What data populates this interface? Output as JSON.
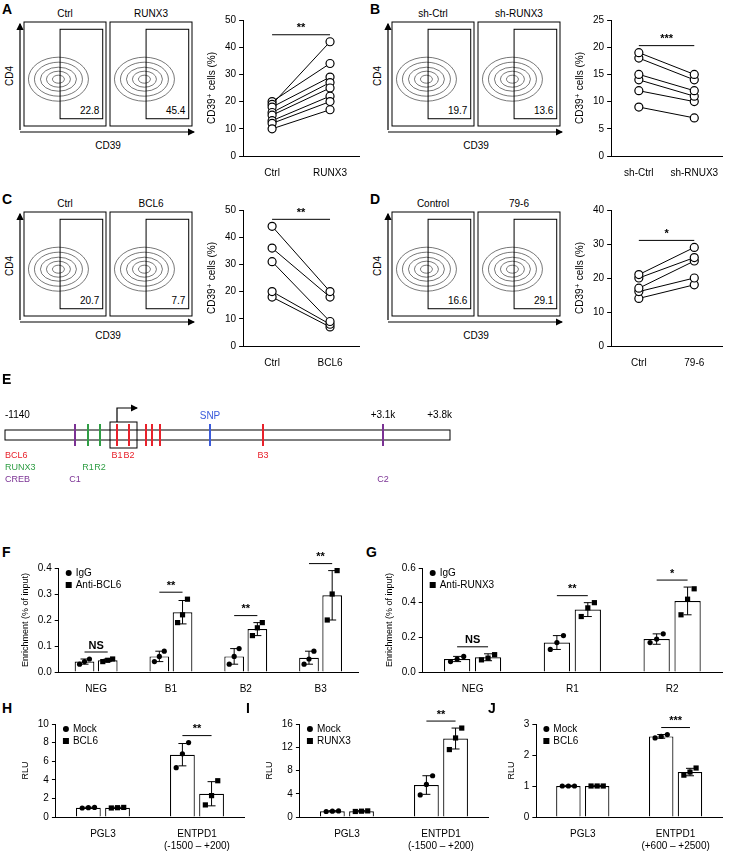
{
  "chart_data": [
    {
      "panel": "A",
      "type": "line",
      "categories": [
        "Ctrl",
        "RUNX3"
      ],
      "y_label": "CD39⁺ cells (%)",
      "ylim": [
        0,
        50
      ],
      "yticks": [
        0,
        10,
        20,
        30,
        40,
        50
      ],
      "grid": false,
      "color": "#000000",
      "marker": "circle",
      "significance": "**",
      "series": [
        {
          "values": [
            10,
            17
          ]
        },
        {
          "values": [
            12,
            20
          ]
        },
        {
          "values": [
            13,
            22
          ]
        },
        {
          "values": [
            15,
            25
          ]
        },
        {
          "values": [
            16,
            27
          ]
        },
        {
          "values": [
            18,
            29
          ]
        },
        {
          "values": [
            19,
            42
          ]
        },
        {
          "values": [
            20,
            34
          ]
        }
      ]
    },
    {
      "panel": "B",
      "type": "line",
      "categories": [
        "sh-Ctrl",
        "sh-RNUX3"
      ],
      "y_label": "CD39⁺ cells (%)",
      "ylim": [
        0,
        25
      ],
      "yticks": [
        0,
        5,
        10,
        15,
        20,
        25
      ],
      "grid": false,
      "color": "#000000",
      "marker": "circle",
      "significance": "***",
      "series": [
        {
          "values": [
            19,
            15
          ]
        },
        {
          "values": [
            18,
            14
          ]
        },
        {
          "values": [
            15,
            12
          ]
        },
        {
          "values": [
            14,
            11
          ]
        },
        {
          "values": [
            12,
            10
          ]
        },
        {
          "values": [
            9,
            7
          ]
        }
      ]
    },
    {
      "panel": "C",
      "type": "line",
      "categories": [
        "Ctrl",
        "BCL6"
      ],
      "y_label": "CD39⁺ cells (%)",
      "ylim": [
        0,
        50
      ],
      "yticks": [
        0,
        10,
        20,
        30,
        40,
        50
      ],
      "grid": false,
      "color": "#000000",
      "marker": "circle",
      "significance": "**",
      "series": [
        {
          "values": [
            44,
            20
          ]
        },
        {
          "values": [
            36,
            18
          ]
        },
        {
          "values": [
            31,
            9
          ]
        },
        {
          "values": [
            20,
            8
          ]
        },
        {
          "values": [
            18,
            7
          ]
        }
      ]
    },
    {
      "panel": "D",
      "type": "line",
      "categories": [
        "Ctrl",
        "79-6"
      ],
      "y_label": "CD39⁺ cells (%)",
      "ylim": [
        0,
        40
      ],
      "yticks": [
        0,
        10,
        20,
        30,
        40
      ],
      "grid": false,
      "color": "#000000",
      "marker": "circle",
      "significance": "*",
      "series": [
        {
          "values": [
            21,
            29
          ]
        },
        {
          "values": [
            20,
            26
          ]
        },
        {
          "values": [
            17,
            25
          ]
        },
        {
          "values": [
            16,
            20
          ]
        },
        {
          "values": [
            14,
            18
          ]
        }
      ]
    },
    {
      "panel": "F",
      "type": "bar",
      "categories": [
        "NEG",
        "B1",
        "B2",
        "B3"
      ],
      "y_label": "Enrichment (% of input)",
      "ylim": [
        0,
        0.4
      ],
      "yticks": [
        {
          "value": 0,
          "label": "0.0"
        },
        0.1,
        0.2,
        0.3,
        0.4
      ],
      "grid": false,
      "legend": "top-left",
      "significance": [
        "NS",
        "**",
        "**",
        "**"
      ],
      "series": [
        {
          "name": "IgG",
          "color": "#000000",
          "marker": "circle",
          "values": [
            0.04,
            0.06,
            0.06,
            0.055
          ],
          "errors": [
            0.01,
            0.02,
            0.03,
            0.025
          ],
          "points": [
            [
              0.03,
              0.04,
              0.05
            ],
            [
              0.04,
              0.06,
              0.08
            ],
            [
              0.03,
              0.06,
              0.09
            ],
            [
              0.03,
              0.05,
              0.08
            ]
          ]
        },
        {
          "name": "Anti-BCL6",
          "color": "#000000",
          "marker": "square",
          "values": [
            0.045,
            0.23,
            0.165,
            0.295
          ],
          "errors": [
            0.005,
            0.045,
            0.025,
            0.095
          ],
          "points": [
            [
              0.04,
              0.045,
              0.05
            ],
            [
              0.19,
              0.22,
              0.28
            ],
            [
              0.14,
              0.17,
              0.19
            ],
            [
              0.2,
              0.3,
              0.39
            ]
          ]
        }
      ]
    },
    {
      "panel": "G",
      "type": "bar",
      "categories": [
        "NEG",
        "R1",
        "R2"
      ],
      "y_label": "Enrichment (% of input)",
      "ylim": [
        0,
        0.6
      ],
      "yticks": [
        {
          "value": 0,
          "label": "0.0"
        },
        0.2,
        0.4,
        0.6
      ],
      "grid": false,
      "legend": "top-left",
      "significance": [
        "NS",
        "**",
        "*"
      ],
      "series": [
        {
          "name": "IgG",
          "color": "#000000",
          "marker": "circle",
          "values": [
            0.075,
            0.17,
            0.19
          ],
          "errors": [
            0.015,
            0.04,
            0.03
          ],
          "points": [
            [
              0.06,
              0.075,
              0.09
            ],
            [
              0.13,
              0.17,
              0.21
            ],
            [
              0.17,
              0.19,
              0.22
            ]
          ]
        },
        {
          "name": "Anti-RUNX3",
          "color": "#000000",
          "marker": "square",
          "values": [
            0.085,
            0.36,
            0.41
          ],
          "errors": [
            0.02,
            0.04,
            0.08
          ],
          "points": [
            [
              0.07,
              0.08,
              0.1
            ],
            [
              0.32,
              0.37,
              0.4
            ],
            [
              0.33,
              0.42,
              0.48
            ]
          ]
        }
      ]
    },
    {
      "panel": "H",
      "type": "bar",
      "categories": [
        "PGL3",
        "ENTPD1\n(-1500 – +200)"
      ],
      "y_label": "RLU",
      "ylim": [
        0,
        10
      ],
      "yticks": [
        0,
        2,
        4,
        6,
        8,
        10
      ],
      "grid": false,
      "legend": "top-left",
      "significance": [
        null,
        "**"
      ],
      "series": [
        {
          "name": "Mock",
          "color": "#000000",
          "marker": "circle",
          "values": [
            1,
            6.7
          ],
          "errors": [
            0.05,
            1.2
          ],
          "points": [
            [
              0.97,
              1,
              1.03
            ],
            [
              5.3,
              6.8,
              8.0
            ]
          ]
        },
        {
          "name": "BCL6",
          "color": "#000000",
          "marker": "square",
          "values": [
            1,
            2.5
          ],
          "errors": [
            0.05,
            1.3
          ],
          "points": [
            [
              0.97,
              1,
              1.03
            ],
            [
              1.3,
              2.3,
              3.9
            ]
          ]
        }
      ]
    },
    {
      "panel": "I",
      "type": "bar",
      "categories": [
        "PGL3",
        "ENTPD1\n(-1500 – +200)"
      ],
      "y_label": "RLU",
      "ylim": [
        0,
        16
      ],
      "yticks": [
        0,
        4,
        8,
        12,
        16
      ],
      "grid": false,
      "legend": "top-left",
      "significance": [
        null,
        "**"
      ],
      "series": [
        {
          "name": "Mock",
          "color": "#000000",
          "marker": "circle",
          "values": [
            1,
            5.5
          ],
          "errors": [
            0.1,
            1.6
          ],
          "points": [
            [
              0.95,
              1,
              1.05
            ],
            [
              3.8,
              5.6,
              7.1
            ]
          ]
        },
        {
          "name": "RUNX3",
          "color": "#000000",
          "marker": "square",
          "values": [
            1,
            13.5
          ],
          "errors": [
            0.1,
            1.8
          ],
          "points": [
            [
              0.95,
              1,
              1.05
            ],
            [
              11.6,
              13.6,
              15.3
            ]
          ]
        }
      ]
    },
    {
      "panel": "J",
      "type": "bar",
      "categories": [
        "PGL3",
        "ENTPD1\n(+600 – +2500)"
      ],
      "y_label": "RLU",
      "ylim": [
        0,
        3
      ],
      "yticks": [
        0,
        1,
        2,
        3
      ],
      "grid": false,
      "legend": "top-left",
      "significance": [
        null,
        "***"
      ],
      "series": [
        {
          "name": "Mock",
          "color": "#000000",
          "marker": "circle",
          "values": [
            1,
            2.6
          ],
          "errors": [
            0.02,
            0.06
          ],
          "points": [
            [
              1,
              1,
              1
            ],
            [
              2.55,
              2.6,
              2.66
            ]
          ]
        },
        {
          "name": "BCL6",
          "color": "#000000",
          "marker": "square",
          "values": [
            1,
            1.45
          ],
          "errors": [
            0.02,
            0.12
          ],
          "points": [
            [
              1,
              1,
              1
            ],
            [
              1.35,
              1.45,
              1.58
            ]
          ]
        }
      ]
    }
  ],
  "flow_plots": [
    {
      "x_label": "CD39",
      "y_label": "CD4",
      "plots": [
        {
          "title": "Ctrl",
          "gate": 22.8
        },
        {
          "title": "RUNX3",
          "gate": 45.4
        }
      ]
    },
    {
      "x_label": "CD39",
      "y_label": "CD4",
      "plots": [
        {
          "title": "sh-Ctrl",
          "gate": 19.7
        },
        {
          "title": "sh-RUNX3",
          "gate": 13.6
        }
      ]
    },
    {
      "x_label": "CD39",
      "y_label": "CD4",
      "plots": [
        {
          "title": "Ctrl",
          "gate": 20.7
        },
        {
          "title": "BCL6",
          "gate": 7.7
        }
      ]
    },
    {
      "x_label": "CD39",
      "y_label": "CD4",
      "plots": [
        {
          "title": "Control",
          "gate": 16.6
        },
        {
          "title": "79-6",
          "gate": 29.1
        }
      ]
    }
  ],
  "diagram": {
    "panel": "E",
    "coordinate_labels": [
      "-1140",
      "+3.1k",
      "+3.8k"
    ],
    "factors": [
      {
        "name": "BCL6",
        "color": "#e8212b"
      },
      {
        "name": "RUNX3",
        "color": "#2f9e44"
      },
      {
        "name": "CREB",
        "color": "#7b3294"
      }
    ],
    "sites": [
      {
        "factor": "CREB",
        "label": "C1"
      },
      {
        "factor": "RUNX3",
        "label": "R1"
      },
      {
        "factor": "RUNX3",
        "label": "R2"
      },
      {
        "factor": "BCL6",
        "label": "B1"
      },
      {
        "factor": "BCL6",
        "label": "B2"
      },
      {
        "factor": "BCL6"
      },
      {
        "factor": "BCL6"
      },
      {
        "factor": "BCL6"
      },
      {
        "factor": "BCL6",
        "label": "B3"
      },
      {
        "factor": "CREB",
        "label": "C2"
      }
    ],
    "snp": {
      "label": "SNP",
      "color": "#3b5bdb"
    }
  }
}
